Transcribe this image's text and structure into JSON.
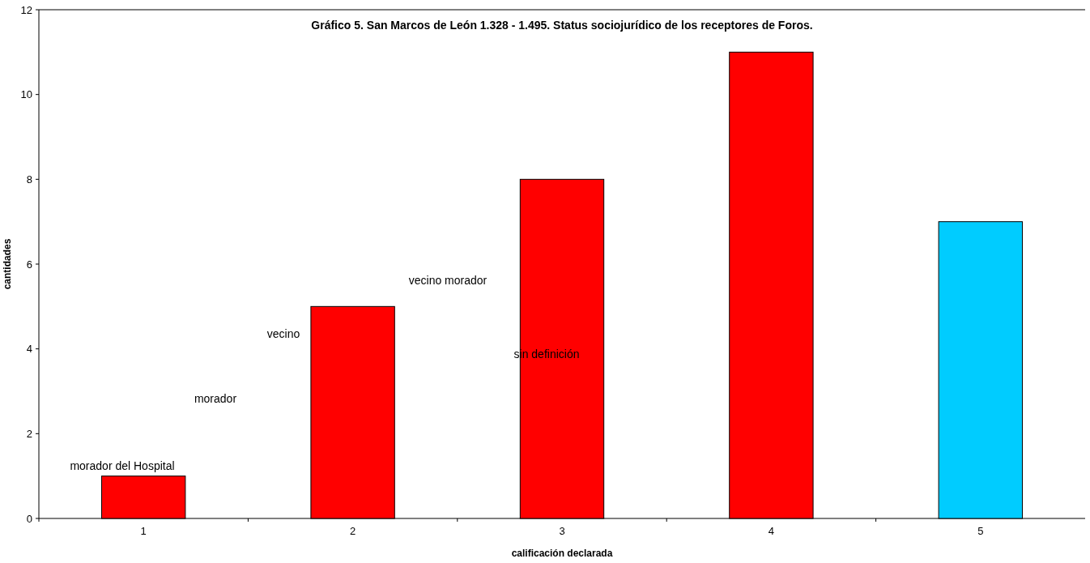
{
  "chart_data": {
    "type": "bar",
    "title": "Gráfico 5. San Marcos de León 1.328 - 1.495. Status sociojurídico de los receptores de Foros.",
    "xlabel": "calificación declarada",
    "ylabel": "cantidades",
    "categories": [
      "1",
      "2",
      "3",
      "4",
      "5"
    ],
    "values": [
      1,
      5,
      8,
      11,
      7
    ],
    "colors": [
      "#ff0000",
      "#ff0000",
      "#ff0000",
      "#ff0000",
      "#00ccff"
    ],
    "ylim": [
      0,
      12
    ],
    "yticks": [
      0,
      2,
      4,
      6,
      8,
      10,
      12
    ],
    "annotations": [
      "morador del Hospital",
      "morador",
      "vecino",
      "vecino morador",
      "sin definición"
    ]
  }
}
